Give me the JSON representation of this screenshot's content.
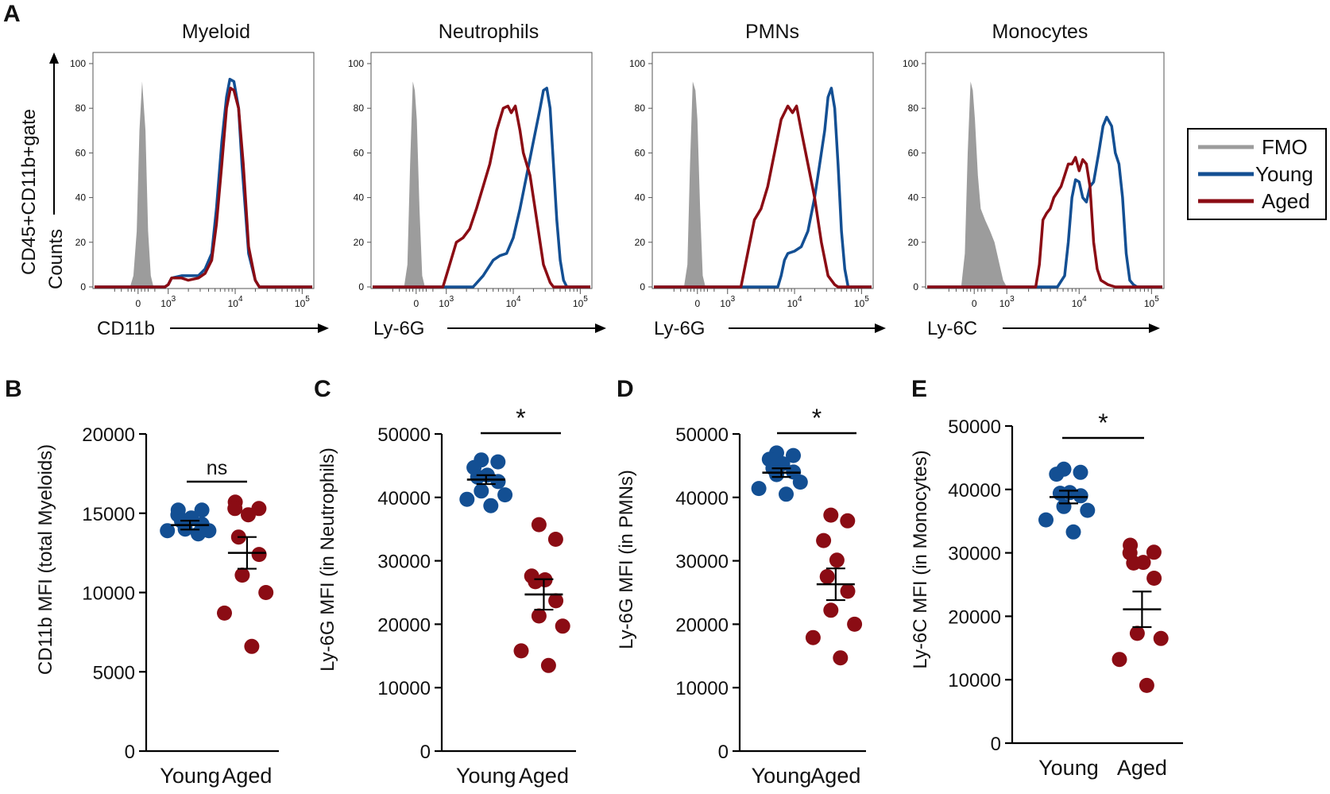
{
  "colors": {
    "young": "#134f93",
    "aged": "#8b0c14",
    "fmo": "#9c9c9c"
  },
  "panel_letters": [
    "A",
    "B",
    "C",
    "D",
    "E"
  ],
  "hist_axis": {
    "y_title_line1": "CD45+CD11b+gate",
    "y_title_line2": "Counts"
  },
  "legend": {
    "fmo": "FMO",
    "young": "Young",
    "aged": "Aged"
  },
  "chart_data": [
    {
      "panel": "A",
      "type": "area",
      "title": "Myeloid",
      "xlabel": "CD11b",
      "yticks": [
        "100",
        "80",
        "60",
        "40",
        "20",
        "0"
      ],
      "xticks": [
        {
          "base": "0",
          "exp": ""
        },
        {
          "base": "10",
          "exp": "3"
        },
        {
          "base": "10",
          "exp": "4"
        },
        {
          "base": "10",
          "exp": "5"
        }
      ],
      "ylim": [
        0,
        100
      ],
      "xlim_log": [
        1.9,
        5.15
      ],
      "series": [
        {
          "name": "FMO",
          "kind": "fill",
          "x": [
            1.9,
            2.43,
            2.48,
            2.53,
            2.57,
            2.61,
            2.66,
            2.7,
            2.74,
            2.78,
            5.15
          ],
          "y": [
            0,
            0,
            5,
            25,
            70,
            92,
            70,
            25,
            5,
            0,
            0
          ]
        },
        {
          "name": "Young",
          "kind": "line",
          "x": [
            1.9,
            2.95,
            3.0,
            3.05,
            3.2,
            3.3,
            3.45,
            3.55,
            3.65,
            3.72,
            3.8,
            3.87,
            3.92,
            3.98,
            4.05,
            4.1,
            4.2,
            4.3,
            4.36,
            5.15
          ],
          "y": [
            0,
            0,
            1,
            4,
            5,
            5,
            5,
            8,
            15,
            35,
            65,
            85,
            93,
            92,
            80,
            55,
            15,
            3,
            0,
            0
          ]
        },
        {
          "name": "Aged",
          "kind": "line",
          "x": [
            1.9,
            2.95,
            3.0,
            3.05,
            3.2,
            3.3,
            3.45,
            3.55,
            3.65,
            3.72,
            3.8,
            3.87,
            3.93,
            3.98,
            4.05,
            4.12,
            4.2,
            4.3,
            4.36,
            5.15
          ],
          "y": [
            0,
            0,
            1,
            4,
            4,
            3,
            4,
            6,
            12,
            28,
            55,
            80,
            89,
            88,
            80,
            55,
            18,
            3,
            0,
            0
          ]
        }
      ]
    },
    {
      "panel": "A",
      "type": "area",
      "title": "Neutrophils",
      "xlabel": "Ly-6G",
      "yticks": [
        "100",
        "80",
        "60",
        "40",
        "20",
        "0"
      ],
      "xticks": [
        {
          "base": "0",
          "exp": ""
        },
        {
          "base": "10",
          "exp": "3"
        },
        {
          "base": "10",
          "exp": "4"
        },
        {
          "base": "10",
          "exp": "5"
        }
      ],
      "ylim": [
        0,
        100
      ],
      "xlim_log": [
        1.9,
        5.15
      ],
      "series": [
        {
          "name": "FMO",
          "kind": "fill",
          "x": [
            1.9,
            2.37,
            2.42,
            2.46,
            2.5,
            2.53,
            2.56,
            2.6,
            2.64,
            2.68,
            5.15
          ],
          "y": [
            0,
            0,
            10,
            55,
            92,
            88,
            75,
            35,
            5,
            0,
            0
          ]
        },
        {
          "name": "Young",
          "kind": "line",
          "x": [
            1.9,
            3.4,
            3.55,
            3.7,
            3.8,
            3.9,
            4.0,
            4.1,
            4.2,
            4.3,
            4.4,
            4.45,
            4.5,
            4.55,
            4.6,
            4.65,
            4.7,
            4.75,
            4.8,
            5.15
          ],
          "y": [
            0,
            0,
            5,
            12,
            14,
            15,
            22,
            35,
            50,
            65,
            80,
            88,
            89,
            80,
            55,
            30,
            12,
            3,
            0,
            0
          ]
        },
        {
          "name": "Aged",
          "kind": "line",
          "x": [
            1.9,
            2.95,
            3.05,
            3.15,
            3.25,
            3.35,
            3.45,
            3.55,
            3.65,
            3.75,
            3.85,
            3.92,
            3.97,
            4.03,
            4.1,
            4.15,
            4.25,
            4.35,
            4.45,
            4.55,
            4.6,
            5.15
          ],
          "y": [
            0,
            0,
            10,
            20,
            22,
            26,
            35,
            45,
            55,
            70,
            80,
            81,
            78,
            81,
            70,
            60,
            50,
            30,
            10,
            2,
            0,
            0
          ]
        }
      ]
    },
    {
      "panel": "A",
      "type": "area",
      "title": "PMNs",
      "xlabel": "Ly-6G",
      "yticks": [
        "100",
        "80",
        "60",
        "40",
        "20",
        "0"
      ],
      "xticks": [
        {
          "base": "0",
          "exp": ""
        },
        {
          "base": "10",
          "exp": "3"
        },
        {
          "base": "10",
          "exp": "4"
        },
        {
          "base": "10",
          "exp": "5"
        }
      ],
      "ylim": [
        0,
        100
      ],
      "xlim_log": [
        1.9,
        5.15
      ],
      "series": [
        {
          "name": "FMO",
          "kind": "fill",
          "x": [
            1.9,
            2.35,
            2.4,
            2.44,
            2.48,
            2.52,
            2.55,
            2.59,
            2.63,
            2.67,
            5.15
          ],
          "y": [
            0,
            0,
            10,
            55,
            92,
            88,
            75,
            35,
            5,
            0,
            0
          ]
        },
        {
          "name": "Young",
          "kind": "line",
          "x": [
            1.9,
            3.75,
            3.8,
            3.85,
            3.9,
            4.0,
            4.1,
            4.2,
            4.3,
            4.35,
            4.4,
            4.45,
            4.5,
            4.55,
            4.6,
            4.65,
            4.7,
            4.75,
            4.8,
            5.15
          ],
          "y": [
            0,
            0,
            5,
            12,
            15,
            16,
            18,
            25,
            40,
            50,
            60,
            70,
            85,
            89,
            80,
            55,
            25,
            8,
            0,
            0
          ]
        },
        {
          "name": "Aged",
          "kind": "line",
          "x": [
            1.9,
            3.2,
            3.3,
            3.4,
            3.5,
            3.6,
            3.7,
            3.8,
            3.9,
            3.97,
            4.03,
            4.1,
            4.2,
            4.3,
            4.4,
            4.5,
            4.6,
            4.65,
            5.15
          ],
          "y": [
            0,
            0,
            15,
            30,
            35,
            45,
            60,
            75,
            81,
            78,
            81,
            70,
            55,
            40,
            20,
            5,
            1,
            0,
            0
          ]
        }
      ]
    },
    {
      "panel": "A",
      "type": "area",
      "title": "Monocytes",
      "xlabel": "Ly-6C",
      "yticks": [
        "100",
        "80",
        "60",
        "40",
        "20",
        "0"
      ],
      "xticks": [
        {
          "base": "0",
          "exp": ""
        },
        {
          "base": "10",
          "exp": "3"
        },
        {
          "base": "10",
          "exp": "4"
        },
        {
          "base": "10",
          "exp": "5"
        }
      ],
      "ylim": [
        0,
        100
      ],
      "xlim_log": [
        1.9,
        5.15
      ],
      "series": [
        {
          "name": "FMO",
          "kind": "fill",
          "x": [
            1.9,
            2.37,
            2.42,
            2.46,
            2.5,
            2.53,
            2.56,
            2.6,
            2.64,
            2.7,
            2.77,
            2.83,
            2.9,
            2.95,
            3.0,
            5.15
          ],
          "y": [
            0,
            0,
            15,
            60,
            92,
            88,
            75,
            50,
            35,
            30,
            25,
            20,
            10,
            3,
            0,
            0
          ]
        },
        {
          "name": "Young",
          "kind": "line",
          "x": [
            1.9,
            3.7,
            3.8,
            3.85,
            3.9,
            3.95,
            4.0,
            4.05,
            4.1,
            4.15,
            4.2,
            4.27,
            4.33,
            4.38,
            4.45,
            4.5,
            4.55,
            4.6,
            4.65,
            4.7,
            4.75,
            4.8,
            5.15
          ],
          "y": [
            0,
            0,
            5,
            20,
            40,
            48,
            47,
            40,
            38,
            45,
            47,
            60,
            72,
            76,
            72,
            60,
            55,
            40,
            15,
            3,
            1,
            0,
            0
          ]
        },
        {
          "name": "Aged",
          "kind": "line",
          "x": [
            1.9,
            3.4,
            3.45,
            3.5,
            3.55,
            3.6,
            3.65,
            3.75,
            3.85,
            3.9,
            3.95,
            4.0,
            4.05,
            4.1,
            4.15,
            4.2,
            4.25,
            4.3,
            4.35,
            4.4,
            4.5,
            4.55,
            5.15
          ],
          "y": [
            0,
            0,
            10,
            30,
            33,
            35,
            40,
            45,
            55,
            55,
            58,
            52,
            57,
            55,
            45,
            20,
            8,
            3,
            2,
            1,
            0,
            0,
            0
          ]
        }
      ]
    },
    {
      "panel": "B",
      "type": "scatter",
      "ylabel": "CD11b MFI  (total Myeloids)",
      "categories": [
        "Young",
        "Aged"
      ],
      "ylim": [
        0,
        20000
      ],
      "yticks": [
        "0",
        "5000",
        "10000",
        "15000",
        "20000"
      ],
      "annotation": "ns",
      "series": [
        {
          "name": "Young",
          "values": [
            15200,
            15200,
            14900,
            14700,
            14500,
            14300,
            14000,
            13900,
            13900,
            13700
          ],
          "mean": 14250,
          "sem": 280
        },
        {
          "name": "Aged",
          "values": [
            15700,
            15300,
            15300,
            14900,
            13500,
            12400,
            11100,
            10000,
            8700,
            6600
          ],
          "mean": 12500,
          "sem": 1000
        }
      ]
    },
    {
      "panel": "C",
      "type": "scatter",
      "ylabel": "Ly-6G MFI (in Neutrophils)",
      "categories": [
        "Young",
        "Aged"
      ],
      "ylim": [
        0,
        50000
      ],
      "yticks": [
        "0",
        "10000",
        "20000",
        "30000",
        "40000",
        "50000"
      ],
      "annotation": "*",
      "series": [
        {
          "name": "Young",
          "values": [
            45900,
            45600,
            44700,
            43500,
            43200,
            42500,
            41000,
            40400,
            39700,
            38700
          ],
          "mean": 42800,
          "sem": 700
        },
        {
          "name": "Aged",
          "values": [
            35700,
            33400,
            27600,
            27000,
            26700,
            23700,
            21300,
            19700,
            15800,
            13500
          ],
          "mean": 24700,
          "sem": 2400
        }
      ]
    },
    {
      "panel": "D",
      "type": "scatter",
      "ylabel": "Ly-6G MFI (in PMNs)",
      "categories": [
        "Young",
        "Aged"
      ],
      "ylim": [
        0,
        50000
      ],
      "yticks": [
        "0",
        "10000",
        "20000",
        "30000",
        "40000",
        "50000"
      ],
      "annotation": "*",
      "series": [
        {
          "name": "Young",
          "values": [
            47000,
            46600,
            46000,
            45300,
            44600,
            44000,
            43600,
            42400,
            41400,
            40500
          ],
          "mean": 43900,
          "sem": 680
        },
        {
          "name": "Aged",
          "values": [
            37200,
            36300,
            33200,
            30100,
            27500,
            25200,
            22200,
            20000,
            17900,
            14700
          ],
          "mean": 26300,
          "sem": 2500
        }
      ]
    },
    {
      "panel": "E",
      "type": "scatter",
      "ylabel": "Ly-6C MFI (in Monocytes)",
      "categories": [
        "Young",
        "Aged"
      ],
      "ylim": [
        0,
        50000
      ],
      "yticks": [
        "0",
        "10000",
        "20000",
        "30000",
        "40000",
        "50000"
      ],
      "annotation": "*",
      "series": [
        {
          "name": "Young",
          "values": [
            43200,
            42700,
            42400,
            39500,
            39400,
            39000,
            37300,
            36700,
            35200,
            33300
          ],
          "mean": 38800,
          "sem": 1000
        },
        {
          "name": "Aged",
          "values": [
            31200,
            30100,
            30000,
            28500,
            28400,
            26000,
            17300,
            16500,
            13200,
            9100
          ],
          "mean": 21100,
          "sem": 2800
        }
      ]
    }
  ]
}
